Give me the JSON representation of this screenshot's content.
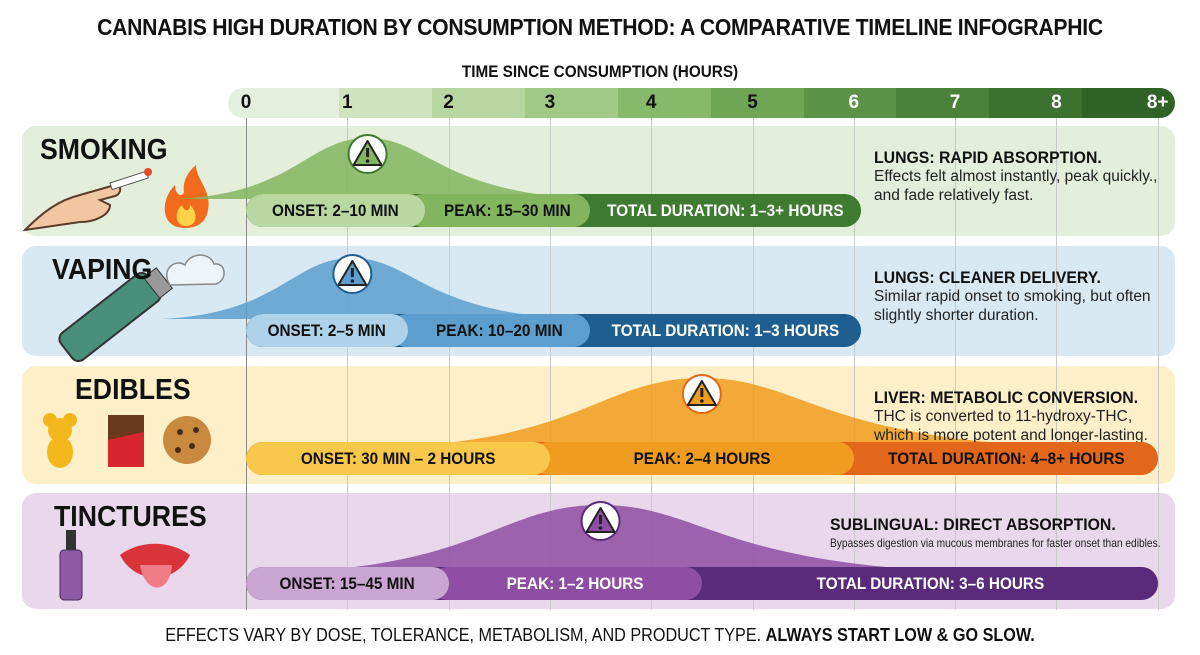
{
  "title": "CANNABIS HIGH DURATION BY CONSUMPTION METHOD: A COMPARATIVE TIMELINE INFOGRAPHIC",
  "axis": {
    "title": "TIME SINCE CONSUMPTION (HOURS)",
    "ticks": [
      "0",
      "1",
      "2",
      "3",
      "4",
      "5",
      "6",
      "7",
      "8",
      "8+"
    ],
    "band_colors": [
      "#e5efdd",
      "#cfe3bf",
      "#b7d6a0",
      "#a0c985",
      "#86b96a",
      "#6ea655",
      "#5a9346",
      "#4a823a",
      "#3c722f",
      "#2f6326"
    ]
  },
  "rows": [
    {
      "name": "SMOKING",
      "icons": [
        "hand-cigarette-icon",
        "fire-icon"
      ],
      "heading": "LUNGS: RAPID ABSORPTION.",
      "text": "Effects felt almost instantly, peak quickly., and fade relatively fast.",
      "colors": {
        "bg": "#e3eedb",
        "onset": "#b9d7a0",
        "peak": "#82b55e",
        "total": "#3e7a2f",
        "text": [
          "#111",
          "#111",
          "#fff"
        ]
      },
      "segments": [
        {
          "label": "ONSET: 2–10 MIN",
          "end_hours": 1.77
        },
        {
          "label": "PEAK: 15–30 MIN",
          "end_hours": 3.4
        },
        {
          "label": "TOTAL DURATION: 1–3+ HOURS",
          "end_hours": 6.07
        }
      ],
      "peak_hours": 1.2
    },
    {
      "name": "VAPING",
      "icons": [
        "vape-pen-icon",
        "vapor-cloud-icon"
      ],
      "heading": "LUNGS: CLEANER DELIVERY.",
      "text": "Similar rapid onset to smoking, but often slightly shorter duration.",
      "colors": {
        "bg": "#d9e9f4",
        "onset": "#aed2ea",
        "peak": "#5c9fcf",
        "total": "#1f5f8f",
        "text": [
          "#111",
          "#111",
          "#fff"
        ]
      },
      "segments": [
        {
          "label": "ONSET: 2–5 MIN",
          "end_hours": 1.6
        },
        {
          "label": "PEAK: 10–20 MIN",
          "end_hours": 3.4
        },
        {
          "label": "TOTAL DURATION: 1–3 HOURS",
          "end_hours": 6.07
        }
      ],
      "peak_hours": 1.05
    },
    {
      "name": "EDIBLES",
      "icons": [
        "gummy-bear-icon",
        "chocolate-bar-icon",
        "cookie-icon"
      ],
      "heading": "LIVER: METABOLIC CONVERSION.",
      "text": "THC is converted to 11-hydroxy-THC, which is more potent and longer-lasting.",
      "colors": {
        "bg": "#fdf0c9",
        "onset": "#f8c84b",
        "peak": "#f09c1f",
        "total": "#e2671a",
        "text": [
          "#111",
          "#111",
          "#111"
        ]
      },
      "segments": [
        {
          "label": "ONSET: 30 MIN – 2 HOURS",
          "end_hours": 3.0
        },
        {
          "label": "PEAK: 2–4 HOURS",
          "end_hours": 6.0
        },
        {
          "label": "TOTAL DURATION: 4–8+ HOURS",
          "end_hours": 9
        }
      ],
      "peak_hours": 4.5
    },
    {
      "name": "TINCTURES",
      "icons": [
        "dropper-bottle-icon",
        "mouth-tongue-icon"
      ],
      "heading": "SUBLINGUAL: DIRECT ABSORPTION.",
      "text": "Bypasses digestion via mucous membranes for faster onset than edibles.",
      "colors": {
        "bg": "#e9d8eb",
        "onset": "#c9a6d1",
        "peak": "#8e4ea3",
        "total": "#5a2a7b",
        "text": [
          "#111",
          "#fff",
          "#fff"
        ]
      },
      "segments": [
        {
          "label": "ONSET: 15–45 MIN",
          "end_hours": 2.0
        },
        {
          "label": "PEAK: 1–2 HOURS",
          "end_hours": 4.5
        },
        {
          "label": "TOTAL DURATION: 3–6 HOURS",
          "end_hours": 9
        }
      ],
      "peak_hours": 3.5
    }
  ],
  "footer": {
    "text": "EFFECTS VARY BY DOSE, TOLERANCE, METABOLISM, AND PRODUCT TYPE. ",
    "emphasis": "ALWAYS START LOW & GO SLOW."
  }
}
